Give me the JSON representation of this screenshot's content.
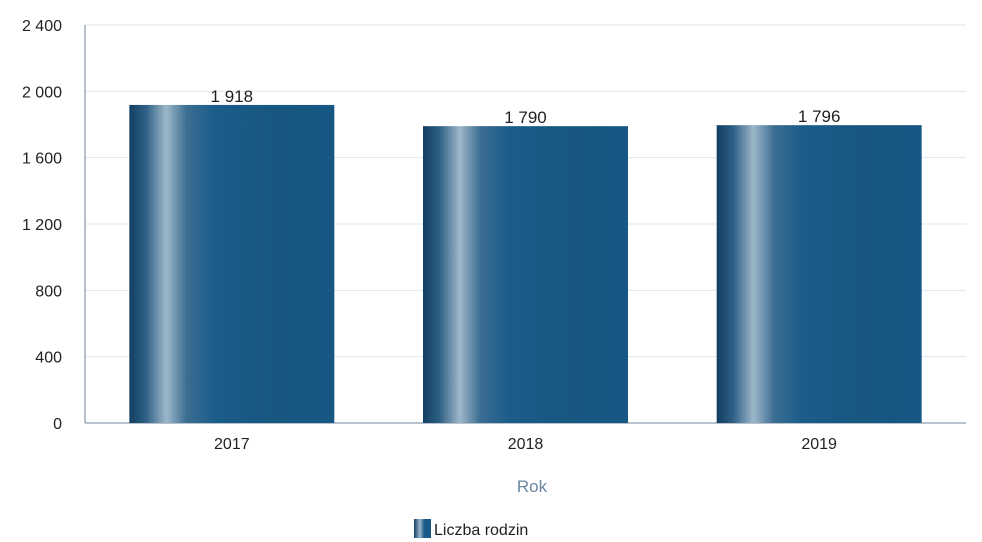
{
  "chart_data": {
    "type": "bar",
    "categories": [
      "2017",
      "2018",
      "2019"
    ],
    "series": [
      {
        "name": "Liczba rodzin",
        "values": [
          1918,
          1790,
          1796
        ],
        "data_labels": [
          "1 918",
          "1 790",
          "1 796"
        ]
      }
    ],
    "ylim": [
      0,
      2400
    ],
    "yticks": [
      0,
      400,
      800,
      1200,
      1600,
      2000,
      2400
    ],
    "ytick_labels": [
      "0",
      "400",
      "800",
      "1 200",
      "1 600",
      "2 000",
      "2 400"
    ],
    "xlabel": "Rok",
    "ylabel": "",
    "title": "",
    "grid": true,
    "legend_position": "bottom-center",
    "colors": {
      "bar_dark": "#123f63",
      "bar_mid": "#1a5c8a",
      "bar_light": "#9bb8cc",
      "grid": "#dfe6ee",
      "axis": "#6f8599",
      "xlabel": "#6b87a1"
    }
  }
}
